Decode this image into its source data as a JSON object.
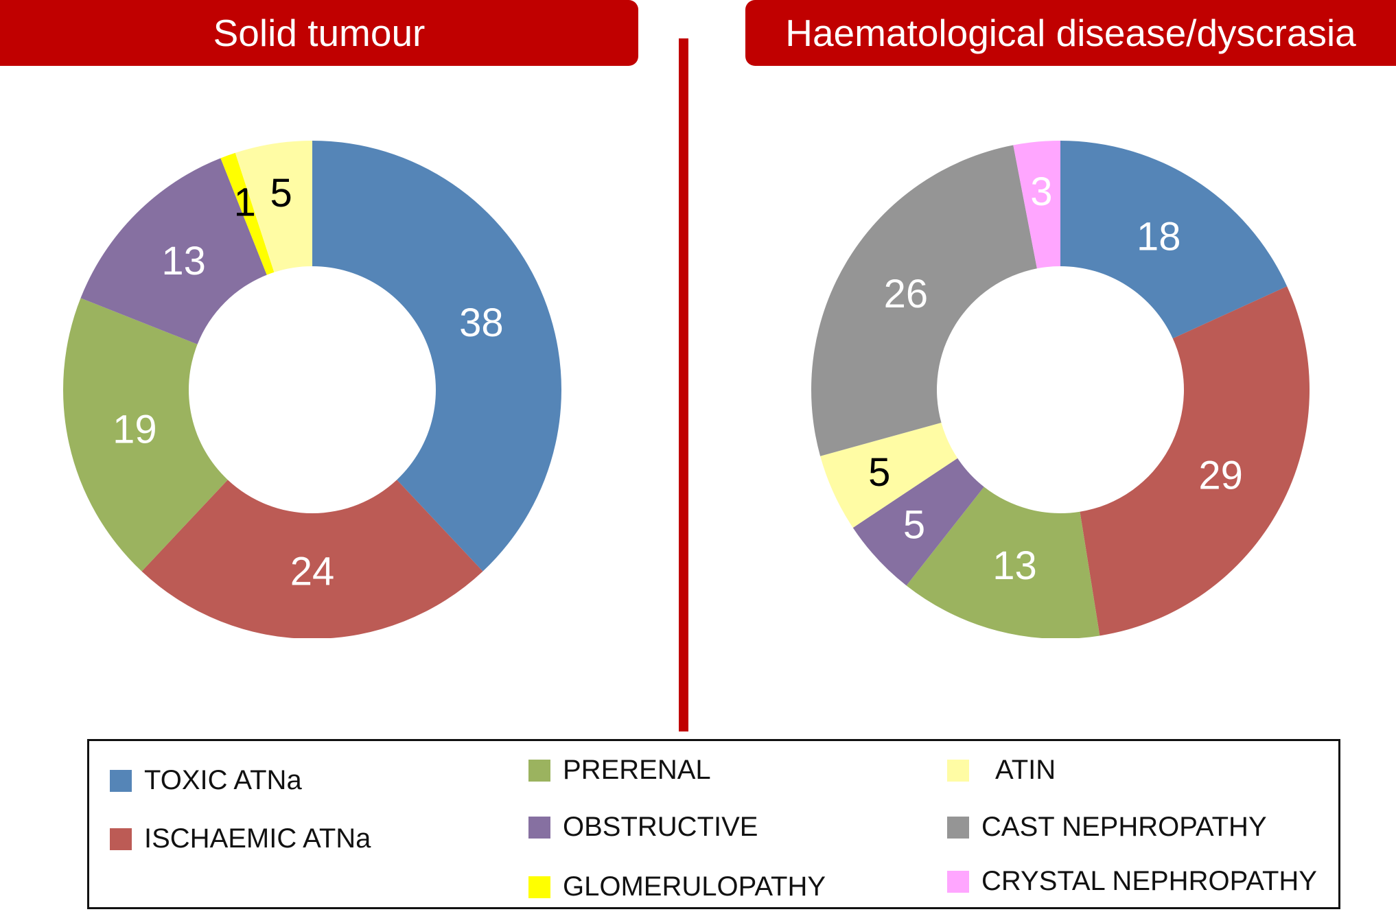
{
  "chart_data": [
    {
      "type": "pie",
      "title": "Solid tumour",
      "slices": [
        {
          "label": "TOXIC ATNa",
          "value": 38,
          "color": "#5585b7",
          "text_color": "#ffffff"
        },
        {
          "label": "ISCHAEMIC ATNa",
          "value": 24,
          "color": "#bc5b55",
          "text_color": "#ffffff"
        },
        {
          "label": "PRERENAL",
          "value": 19,
          "color": "#9bb35f",
          "text_color": "#ffffff"
        },
        {
          "label": "OBSTRUCTIVE",
          "value": 13,
          "color": "#8670a1",
          "text_color": "#ffffff"
        },
        {
          "label": "GLOMERULOPATHY",
          "value": 1,
          "color": "#ffff00",
          "text_color": "#000000"
        },
        {
          "label": "ATIN",
          "value": 5,
          "color": "#fffca4",
          "text_color": "#000000"
        }
      ]
    },
    {
      "type": "pie",
      "title": "Haematological disease/dyscrasia",
      "slices": [
        {
          "label": "TOXIC ATNa",
          "value": 18,
          "color": "#5585b7",
          "text_color": "#ffffff"
        },
        {
          "label": "ISCHAEMIC ATNa",
          "value": 29,
          "color": "#bc5b55",
          "text_color": "#ffffff"
        },
        {
          "label": "PRERENAL",
          "value": 13,
          "color": "#9bb35f",
          "text_color": "#ffffff"
        },
        {
          "label": "OBSTRUCTIVE",
          "value": 5,
          "color": "#8670a1",
          "text_color": "#ffffff"
        },
        {
          "label": "ATIN",
          "value": 5,
          "color": "#fffca4",
          "text_color": "#000000"
        },
        {
          "label": "CAST NEPHROPATHY",
          "value": 26,
          "color": "#959595",
          "text_color": "#ffffff"
        },
        {
          "label": "CRYSTAL NEPHROPATHY",
          "value": 3,
          "color": "#ffa6ff",
          "text_color": "#ffffff"
        }
      ]
    }
  ],
  "legend": [
    {
      "label": "TOXIC ATNa",
      "color": "#5585b7"
    },
    {
      "label": "ISCHAEMIC ATNa",
      "color": "#bc5b55"
    },
    {
      "label": "PRERENAL",
      "color": "#9bb35f"
    },
    {
      "label": "OBSTRUCTIVE",
      "color": "#8670a1"
    },
    {
      "label": "GLOMERULOPATHY",
      "color": "#ffff00"
    },
    {
      "label": "ATIN",
      "color": "#fffca4"
    },
    {
      "label": "CAST NEPHROPATHY",
      "color": "#959595"
    },
    {
      "label": "CRYSTAL NEPHROPATHY",
      "color": "#ffa6ff"
    }
  ]
}
